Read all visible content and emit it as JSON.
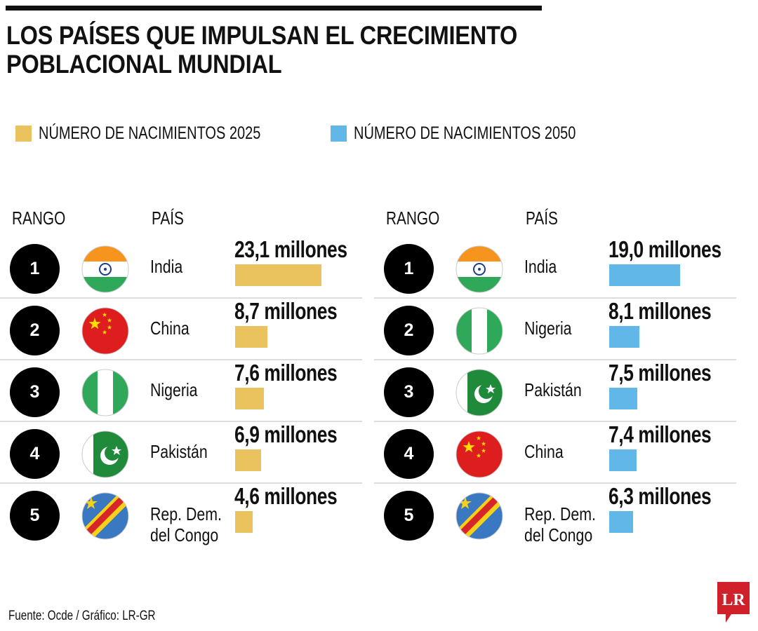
{
  "title_lines": [
    "LOS PAÍSES QUE IMPULSAN EL CRECIMIENTO",
    "POBLACIONAL MUNDIAL"
  ],
  "source": "Fuente: Ocde / Gráfico: LR-GR",
  "logo_text": "LR",
  "colors": {
    "y2025": "#EBC35E",
    "y2050": "#61B7E7",
    "logo": "#D0202A"
  },
  "chart_data": {
    "type": "bar",
    "title": "LOS PAÍSES QUE IMPULSAN EL CRECIMIENTO POBLACIONAL MUNDIAL",
    "unit": "millones",
    "legend": [
      "NÚMERO DE NACIMIENTOS 2025",
      "NÚMERO DE NACIMIENTOS 2050"
    ],
    "panels": [
      {
        "series": "NÚMERO DE NACIMIENTOS 2025",
        "col_rank": "RANGO",
        "col_country": "PAÍS",
        "rows": [
          {
            "rank": "1",
            "country": "India",
            "flag": "india-flag-icon",
            "value": 23.1,
            "label": "23,1 millones"
          },
          {
            "rank": "2",
            "country": "China",
            "flag": "china-flag-icon",
            "value": 8.7,
            "label": "8,7 millones"
          },
          {
            "rank": "3",
            "country": "Nigeria",
            "flag": "nigeria-flag-icon",
            "value": 7.6,
            "label": "7,6 millones"
          },
          {
            "rank": "4",
            "country": "Pakistán",
            "flag": "pakistan-flag-icon",
            "value": 6.9,
            "label": "6,9 millones"
          },
          {
            "rank": "5",
            "country": "Rep. Dem. del Congo",
            "flag": "drc-flag-icon",
            "value": 4.6,
            "label": "4,6 millones"
          }
        ]
      },
      {
        "series": "NÚMERO DE NACIMIENTOS 2050",
        "col_rank": "RANGO",
        "col_country": "PAÍS",
        "rows": [
          {
            "rank": "1",
            "country": "India",
            "flag": "india-flag-icon",
            "value": 19.0,
            "label": "19,0 millones"
          },
          {
            "rank": "2",
            "country": "Nigeria",
            "flag": "nigeria-flag-icon",
            "value": 8.1,
            "label": "8,1 millones"
          },
          {
            "rank": "3",
            "country": "Pakistán",
            "flag": "pakistan-flag-icon",
            "value": 7.5,
            "label": "7,5 millones"
          },
          {
            "rank": "4",
            "country": "China",
            "flag": "china-flag-icon",
            "value": 7.4,
            "label": "7,4 millones"
          },
          {
            "rank": "5",
            "country": "Rep. Dem. del Congo",
            "flag": "drc-flag-icon",
            "value": 6.3,
            "label": "6,3 millones"
          }
        ]
      }
    ]
  }
}
